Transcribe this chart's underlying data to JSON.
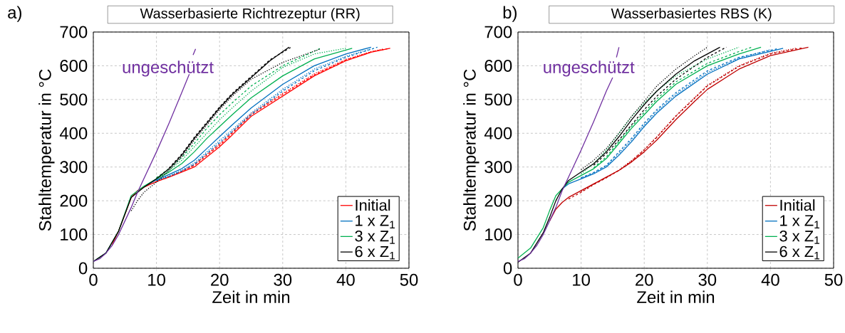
{
  "chart_data": [
    {
      "type": "line",
      "title": "Wasserbasierte Richtrezeptur (RR)",
      "xlabel": "Zeit in min",
      "ylabel": "Stahltemperatur in °C",
      "xlim": [
        0,
        50
      ],
      "xticks": [
        0,
        10,
        20,
        30,
        40,
        50
      ],
      "ylim": [
        0,
        700
      ],
      "yticks": [
        0,
        100,
        200,
        300,
        400,
        500,
        600,
        700
      ],
      "grid": true,
      "legend": "bottom right",
      "marker": "none",
      "annotations": [
        "a)",
        "ungeschützt"
      ],
      "series": [
        {
          "name": "Initial",
          "color": "#ff0000",
          "line_style": "solid",
          "x": [
            3,
            4,
            5,
            6,
            7,
            8,
            10,
            12,
            14,
            16,
            18,
            20,
            22,
            25,
            30,
            35,
            40,
            44,
            47
          ],
          "values": [
            70,
            110,
            160,
            210,
            230,
            240,
            257,
            270,
            285,
            300,
            330,
            360,
            395,
            450,
            510,
            570,
            615,
            640,
            652
          ]
        },
        {
          "color": "#ff0000",
          "line_style": "dashed",
          "x": [
            10,
            12,
            14,
            16,
            18,
            20,
            22,
            25,
            30,
            35,
            40,
            44,
            47
          ],
          "values": [
            257,
            271,
            287,
            305,
            335,
            365,
            400,
            455,
            515,
            573,
            617,
            641,
            652
          ]
        },
        {
          "color": "#ff0000",
          "line_style": "dotted",
          "x": [
            10,
            12,
            14,
            16,
            18,
            20,
            22,
            25,
            30,
            35,
            40,
            44,
            46
          ],
          "values": [
            258,
            272,
            288,
            307,
            338,
            368,
            403,
            458,
            518,
            576,
            619,
            642,
            650
          ]
        },
        {
          "name": "1 x Z$_{1}$",
          "color": "#0070c0",
          "line_style": "solid",
          "x": [
            8,
            10,
            12,
            14,
            16,
            18,
            20,
            22,
            25,
            30,
            35,
            40,
            44
          ],
          "values": [
            242,
            262,
            278,
            295,
            320,
            355,
            390,
            425,
            475,
            545,
            600,
            635,
            655
          ]
        },
        {
          "color": "#0070c0",
          "line_style": "dashed",
          "x": [
            10,
            12,
            14,
            16,
            18,
            20,
            22,
            25,
            30,
            35,
            40,
            45
          ],
          "values": [
            260,
            272,
            288,
            308,
            340,
            372,
            405,
            455,
            525,
            585,
            625,
            655
          ]
        },
        {
          "color": "#0070c0",
          "line_style": "dotted",
          "x": [
            10,
            12,
            14,
            16,
            18,
            20,
            22,
            25,
            30,
            35,
            40,
            44
          ],
          "values": [
            261,
            274,
            290,
            312,
            345,
            378,
            410,
            460,
            530,
            590,
            628,
            650
          ]
        },
        {
          "name": "3 x Z$_{1}$",
          "color": "#00b050",
          "line_style": "solid",
          "x": [
            0,
            2,
            4,
            6,
            8,
            10,
            12,
            14,
            16,
            18,
            20,
            22,
            25,
            30,
            35,
            41
          ],
          "values": [
            20,
            45,
            110,
            215,
            243,
            265,
            285,
            310,
            345,
            385,
            420,
            455,
            505,
            570,
            620,
            652
          ]
        },
        {
          "color": "#00b050",
          "line_style": "dashed",
          "x": [
            10,
            12,
            14,
            16,
            18,
            20,
            22,
            25,
            30,
            36
          ],
          "values": [
            268,
            295,
            328,
            370,
            415,
            455,
            490,
            540,
            600,
            652
          ]
        },
        {
          "color": "#00b050",
          "line_style": "dotted",
          "x": [
            10,
            12,
            14,
            16,
            18,
            20,
            22,
            25,
            30,
            35,
            40
          ],
          "values": [
            266,
            290,
            320,
            360,
            400,
            440,
            475,
            525,
            595,
            635,
            652
          ]
        },
        {
          "name": "6 x Z$_{1}$",
          "color": "#000000",
          "line_style": "solid",
          "x": [
            0,
            2,
            4,
            6,
            8,
            10,
            12,
            14,
            16,
            18,
            20,
            22,
            25,
            28,
            31
          ],
          "values": [
            20,
            45,
            110,
            210,
            240,
            265,
            295,
            335,
            385,
            430,
            475,
            515,
            565,
            615,
            655
          ]
        },
        {
          "color": "#000000",
          "line_style": "dashed",
          "x": [
            12,
            14,
            16,
            18,
            20,
            22,
            25,
            28,
            31.5
          ],
          "values": [
            297,
            338,
            388,
            433,
            478,
            518,
            568,
            618,
            657
          ]
        },
        {
          "color": "#000000",
          "line_style": "dotted",
          "x": [
            6,
            7,
            8,
            10,
            12,
            14,
            16,
            18,
            20,
            22,
            25,
            30,
            36
          ],
          "values": [
            170,
            200,
            225,
            255,
            290,
            330,
            380,
            425,
            470,
            510,
            560,
            610,
            650
          ]
        },
        {
          "color": "#7030a0",
          "line_style": "solid",
          "x": [
            0,
            1,
            2,
            3,
            4,
            5,
            6,
            7,
            8,
            10,
            12,
            14,
            15.2,
            15.5,
            15.8,
            16.2
          ],
          "values": [
            20,
            28,
            45,
            68,
            100,
            140,
            180,
            225,
            265,
            345,
            430,
            520,
            575,
            null,
            632,
            650
          ]
        }
      ]
    },
    {
      "type": "line",
      "title": "Wasserbasiertes RBS (K)",
      "xlabel": "Zeit in min",
      "ylabel": "Stahltemperatur in °C",
      "xlim": [
        0,
        50
      ],
      "xticks": [
        0,
        10,
        20,
        30,
        40,
        50
      ],
      "ylim": [
        0,
        700
      ],
      "yticks": [
        0,
        100,
        200,
        300,
        400,
        500,
        600,
        700
      ],
      "grid": true,
      "legend": "bottom right",
      "marker": "none",
      "annotations": [
        "b)",
        "ungeschützt"
      ],
      "series": [
        {
          "name": "Initial",
          "color": "#c00000",
          "line_style": "solid",
          "x": [
            5,
            6,
            7,
            8,
            10,
            12,
            14,
            16,
            18,
            20,
            22,
            25,
            28,
            30,
            35,
            40,
            46
          ],
          "values": [
            140,
            175,
            195,
            210,
            230,
            250,
            270,
            290,
            315,
            345,
            380,
            440,
            495,
            530,
            590,
            630,
            655
          ]
        },
        {
          "color": "#c00000",
          "line_style": "dashed",
          "x": [
            8,
            10,
            12,
            14,
            16,
            18,
            20,
            22,
            25,
            30,
            35,
            40,
            45
          ],
          "values": [
            205,
            225,
            248,
            268,
            290,
            318,
            350,
            388,
            450,
            540,
            598,
            635,
            653
          ]
        },
        {
          "color": "#c00000",
          "line_style": "dotted",
          "x": [
            10,
            12,
            14,
            16,
            18,
            20,
            22,
            25,
            30,
            35,
            40,
            44
          ],
          "values": [
            227,
            249,
            269,
            291,
            319,
            352,
            390,
            452,
            542,
            600,
            637,
            652
          ]
        },
        {
          "name": "1 x Z$_{1}$",
          "color": "#0070c0",
          "line_style": "solid",
          "x": [
            7,
            8,
            10,
            12,
            14,
            16,
            18,
            20,
            22,
            25,
            30,
            35,
            42
          ],
          "values": [
            235,
            250,
            265,
            280,
            300,
            335,
            375,
            420,
            460,
            510,
            575,
            620,
            652
          ]
        },
        {
          "color": "#0070c0",
          "line_style": "dashed",
          "x": [
            10,
            12,
            14,
            16,
            18,
            20,
            22,
            25,
            30,
            35,
            41
          ],
          "values": [
            268,
            284,
            305,
            345,
            385,
            430,
            470,
            520,
            585,
            625,
            650
          ]
        },
        {
          "color": "#0070c0",
          "line_style": "dotted",
          "x": [
            10,
            12,
            14,
            16,
            18,
            20,
            22,
            25,
            30,
            35,
            40
          ],
          "values": [
            267,
            282,
            303,
            340,
            380,
            425,
            465,
            515,
            580,
            622,
            648
          ]
        },
        {
          "name": "3 x Z$_{1}$",
          "color": "#00b050",
          "line_style": "solid",
          "x": [
            0,
            2,
            4,
            5,
            6,
            7,
            8,
            10,
            12,
            14,
            16,
            18,
            20,
            22,
            25,
            30,
            35,
            38.5
          ],
          "values": [
            30,
            60,
            120,
            170,
            215,
            235,
            255,
            275,
            295,
            325,
            370,
            415,
            455,
            495,
            545,
            600,
            635,
            655
          ]
        },
        {
          "color": "#00b050",
          "line_style": "dashed",
          "x": [
            12,
            14,
            16,
            18,
            20,
            22,
            25,
            30,
            35,
            37
          ],
          "values": [
            298,
            330,
            376,
            421,
            462,
            502,
            552,
            607,
            642,
            655
          ]
        },
        {
          "color": "#00b050",
          "line_style": "dotted",
          "x": [
            10,
            12,
            14,
            16,
            18,
            20,
            22,
            25,
            30,
            35
          ],
          "values": [
            280,
            310,
            350,
            400,
            450,
            490,
            525,
            570,
            620,
            655
          ]
        },
        {
          "name": "6 x Z$_{1}$",
          "color": "#000000",
          "line_style": "solid",
          "x": [
            0,
            2,
            4,
            5,
            6,
            7,
            8,
            10,
            12,
            14,
            16,
            18,
            20,
            22,
            25,
            28,
            32
          ],
          "values": [
            18,
            45,
            105,
            150,
            200,
            235,
            260,
            285,
            310,
            345,
            390,
            440,
            485,
            525,
            575,
            615,
            655
          ]
        },
        {
          "color": "#000000",
          "line_style": "dashed",
          "x": [
            12,
            14,
            16,
            18,
            20,
            22,
            25,
            30,
            33
          ],
          "values": [
            305,
            340,
            380,
            425,
            470,
            510,
            560,
            625,
            655
          ]
        },
        {
          "color": "#000000",
          "line_style": "dotted",
          "x": [
            10,
            12,
            14,
            16,
            18,
            20,
            22,
            25,
            28,
            30
          ],
          "values": [
            292,
            320,
            355,
            400,
            450,
            495,
            540,
            590,
            630,
            655
          ]
        },
        {
          "color": "#7030a0",
          "line_style": "solid",
          "x": [
            0,
            1,
            2,
            3,
            4,
            5,
            6,
            7,
            8,
            10,
            12,
            14,
            15,
            15.3,
            15.6,
            16
          ],
          "values": [
            20,
            28,
            45,
            68,
            100,
            140,
            180,
            230,
            270,
            350,
            435,
            525,
            565,
            null,
            625,
            655
          ]
        }
      ]
    }
  ]
}
